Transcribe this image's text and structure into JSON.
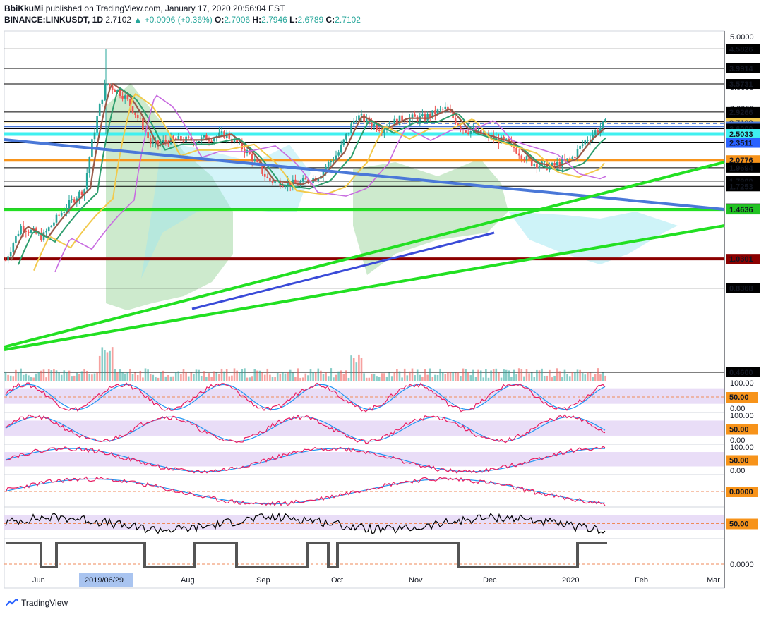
{
  "header": {
    "author": "BbiKkuMi",
    "published": "published on TradingView.com, January 17, 2020 20:56:04 EST",
    "symbol": "BINANCE:LINKUSDT, 1D",
    "last": "2.7102",
    "change": "▲ +0.0096 (+0.36%)",
    "o_label": "O:",
    "o": "2.7006",
    "h_label": "H:",
    "h": "2.7946",
    "l_label": "L:",
    "l": "2.6789",
    "c_label": "C:",
    "c": "2.7102"
  },
  "footer": {
    "brand": "TradingView"
  },
  "chart_data": {
    "type": "line",
    "x_ticks": [
      "Jun",
      "2019/06/29",
      "Aug",
      "Sep",
      "Oct",
      "Nov",
      "Dec",
      "2020",
      "Feb",
      "Mar"
    ],
    "price_axis_ticks": [
      "5.0000",
      "4.5000",
      "3.5000",
      "3.0000"
    ],
    "price_levels": [
      {
        "label": "4.5826",
        "color": "#000000",
        "text_color": "#ffffff"
      },
      {
        "label": "3.9914",
        "color": "#000000",
        "text_color": "#ffffff"
      },
      {
        "label": "3.5731",
        "color": "#000000",
        "text_color": "#ffffff"
      },
      {
        "label": "2.9266",
        "color": "#000000",
        "text_color": "#ffffff"
      },
      {
        "label": "2.7342",
        "color": "#000000",
        "text_color": "#ffffff"
      },
      {
        "label": "2.7102",
        "color": "#f2c94c",
        "text_color": "#000000"
      },
      {
        "label": "2.6388",
        "color": "#4a78d8",
        "text_color": "#ffffff"
      },
      {
        "label": "2.6000",
        "color": "#000000",
        "text_color": "#ffffff"
      },
      {
        "label": "2.5033",
        "color": "#3ff0f0",
        "text_color": "#000000"
      },
      {
        "label": "2.3511",
        "color": "#2962ff",
        "text_color": "#ffffff"
      },
      {
        "label": "2.0776",
        "color": "#f7931a",
        "text_color": "#ffffff"
      },
      {
        "label": "1.9694",
        "color": "#000000",
        "text_color": "#ffffff"
      },
      {
        "label": "1.7900",
        "color": "#000000",
        "text_color": "#ffffff"
      },
      {
        "label": "1.7253",
        "color": "#000000",
        "text_color": "#ffffff"
      },
      {
        "label": "1.4740",
        "color": "#000000",
        "text_color": "#ffffff"
      },
      {
        "label": "1.4636",
        "color": "#22c322",
        "text_color": "#000000"
      },
      {
        "label": "1.0301",
        "color": "#8b0000",
        "text_color": "#ffffff"
      },
      {
        "label": "0.8368",
        "color": "#000000",
        "text_color": "#ffffff"
      },
      {
        "label": "0.4600",
        "color": "#000000",
        "text_color": "#ffffff"
      }
    ],
    "oscillators": [
      {
        "ticks": [
          "100.00",
          "50.00",
          "0.00"
        ],
        "highlight": "50.00"
      },
      {
        "ticks": [
          "100.00",
          "50.00",
          "0.00"
        ],
        "highlight": "50.00"
      },
      {
        "ticks": [
          "100.00",
          "50.00",
          "0.00"
        ],
        "highlight": "50.00"
      },
      {
        "ticks": [],
        "highlight": "0.0000"
      },
      {
        "ticks": [],
        "highlight": "50.00"
      },
      {
        "ticks": [
          "0.0000"
        ],
        "highlight": ""
      }
    ],
    "colors": {
      "bull": "#26a69a",
      "bear": "#ef5350",
      "trend_blue": "#4a78d8",
      "trend_green": "#22e022",
      "cyan": "#3ff0f0",
      "orange": "#f7931a",
      "dark_red": "#8b0000"
    }
  }
}
